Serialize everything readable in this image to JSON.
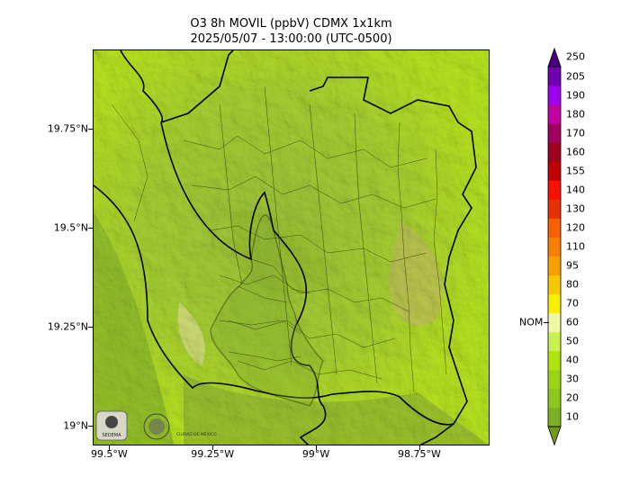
{
  "title": {
    "line1": "O3 8h MOVIL (ppbV) CDMX 1x1km",
    "line2": "2025/05/07 - 13:00:00 (UTC-0500)"
  },
  "map": {
    "y_ticks": [
      {
        "label": "19.75°N",
        "value": 19.75
      },
      {
        "label": "19.5°N",
        "value": 19.5
      },
      {
        "label": "19.25°N",
        "value": 19.25
      },
      {
        "label": "19°N",
        "value": 19.0
      }
    ],
    "x_ticks": [
      {
        "label": "99.5°W",
        "value": -99.5
      },
      {
        "label": "99.25°W",
        "value": -99.25
      },
      {
        "label": "99°W",
        "value": -99.0
      },
      {
        "label": "98.75°W",
        "value": -98.75
      }
    ],
    "logos": [
      "sedema-logo",
      "cdmx-seal-logo"
    ],
    "logo_text": [
      "SEDEMA",
      "CIUDAD DE MÉXICO"
    ]
  },
  "colorbar": {
    "levels": [
      10,
      20,
      30,
      40,
      50,
      60,
      70,
      80,
      95,
      110,
      120,
      130,
      140,
      155,
      160,
      170,
      180,
      190,
      205,
      250
    ],
    "labels": [
      "10",
      "20",
      "30",
      "40",
      "50",
      "60",
      "70",
      "80",
      "95",
      "110",
      "120",
      "130",
      "140",
      "155",
      "160",
      "170",
      "180",
      "190",
      "205",
      "250"
    ],
    "colors": [
      "#6f9a1a",
      "#7bb022",
      "#89c61e",
      "#98d412",
      "#aee40d",
      "#c8f050",
      "#eef8a0",
      "#f8f000",
      "#f8c800",
      "#f8a000",
      "#f88000",
      "#f86000",
      "#e83000",
      "#f81000",
      "#c00000",
      "#a00020",
      "#a00060",
      "#c000a0",
      "#a000f0",
      "#7000b0",
      "#4b0080"
    ],
    "nom_label": "NOM",
    "nom_value": 62
  }
}
